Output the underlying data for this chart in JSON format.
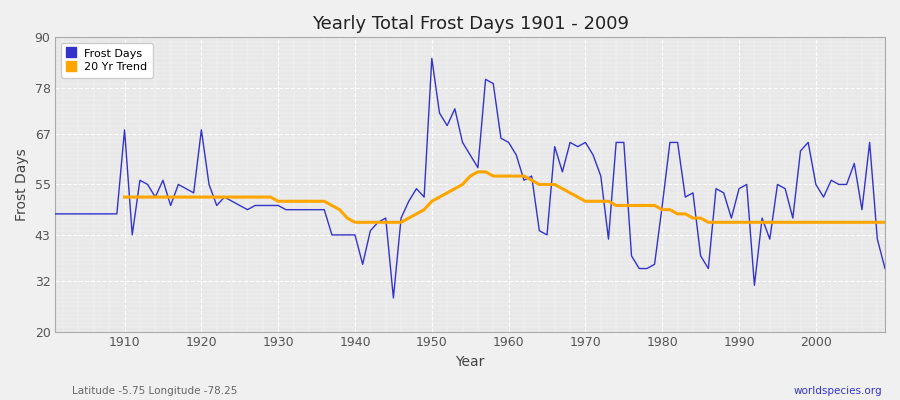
{
  "title": "Yearly Total Frost Days 1901 - 2009",
  "xlabel": "Year",
  "ylabel": "Frost Days",
  "footnote_left": "Latitude -5.75 Longitude -78.25",
  "footnote_right": "worldspecies.org",
  "legend_labels": [
    "Frost Days",
    "20 Yr Trend"
  ],
  "line_color": "#3333cc",
  "trend_color": "#FFA500",
  "plot_bg_color": "#e8e8e8",
  "fig_bg_color": "#f0f0f0",
  "ylim": [
    20,
    90
  ],
  "yticks": [
    20,
    32,
    43,
    55,
    67,
    78,
    90
  ],
  "xlim": [
    1901,
    2009
  ],
  "xticks": [
    1910,
    1920,
    1930,
    1940,
    1950,
    1960,
    1970,
    1980,
    1990,
    2000
  ],
  "years": [
    1901,
    1902,
    1903,
    1904,
    1905,
    1906,
    1907,
    1908,
    1909,
    1910,
    1911,
    1912,
    1913,
    1914,
    1915,
    1916,
    1917,
    1918,
    1919,
    1920,
    1921,
    1922,
    1923,
    1924,
    1925,
    1926,
    1927,
    1928,
    1929,
    1930,
    1931,
    1932,
    1933,
    1934,
    1935,
    1936,
    1937,
    1938,
    1939,
    1940,
    1941,
    1942,
    1943,
    1944,
    1945,
    1946,
    1947,
    1948,
    1949,
    1950,
    1951,
    1952,
    1953,
    1954,
    1955,
    1956,
    1957,
    1958,
    1959,
    1960,
    1961,
    1962,
    1963,
    1964,
    1965,
    1966,
    1967,
    1968,
    1969,
    1970,
    1971,
    1972,
    1973,
    1974,
    1975,
    1976,
    1977,
    1978,
    1979,
    1980,
    1981,
    1982,
    1983,
    1984,
    1985,
    1986,
    1987,
    1988,
    1989,
    1990,
    1991,
    1992,
    1993,
    1994,
    1995,
    1996,
    1997,
    1998,
    1999,
    2000,
    2001,
    2002,
    2003,
    2004,
    2005,
    2006,
    2007,
    2008,
    2009
  ],
  "frost_days": [
    48,
    48,
    48,
    48,
    48,
    48,
    48,
    48,
    48,
    68,
    43,
    56,
    55,
    52,
    56,
    50,
    55,
    54,
    53,
    68,
    55,
    50,
    52,
    51,
    50,
    49,
    50,
    50,
    50,
    50,
    49,
    49,
    49,
    49,
    49,
    49,
    43,
    43,
    43,
    43,
    36,
    44,
    46,
    47,
    28,
    47,
    51,
    54,
    52,
    85,
    72,
    69,
    73,
    65,
    62,
    59,
    80,
    79,
    66,
    65,
    62,
    56,
    57,
    44,
    43,
    64,
    58,
    65,
    64,
    65,
    62,
    57,
    42,
    65,
    65,
    38,
    35,
    35,
    36,
    50,
    65,
    65,
    52,
    53,
    38,
    35,
    54,
    53,
    47,
    54,
    55,
    31,
    47,
    42,
    55,
    54,
    47,
    63,
    65,
    55,
    52,
    56,
    55,
    55,
    60,
    49,
    65,
    42,
    35
  ],
  "trend_years": [
    1910,
    1911,
    1912,
    1913,
    1914,
    1915,
    1916,
    1917,
    1918,
    1919,
    1920,
    1921,
    1922,
    1923,
    1924,
    1925,
    1926,
    1927,
    1928,
    1929,
    1930,
    1931,
    1932,
    1933,
    1934,
    1935,
    1936,
    1937,
    1938,
    1939,
    1940,
    1941,
    1942,
    1943,
    1944,
    1945,
    1946,
    1947,
    1948,
    1949,
    1950,
    1951,
    1952,
    1953,
    1954,
    1955,
    1956,
    1957,
    1958,
    1959,
    1960,
    1961,
    1962,
    1963,
    1964,
    1965,
    1966,
    1967,
    1968,
    1969,
    1970,
    1971,
    1972,
    1973,
    1974,
    1975,
    1976,
    1977,
    1978,
    1979,
    1980,
    1981,
    1982,
    1983,
    1984,
    1985,
    1986,
    1987,
    1988,
    1989,
    1990,
    1991,
    1992,
    1993,
    1994,
    1995,
    1996,
    1997,
    1998,
    1999,
    2000,
    2001,
    2002,
    2003,
    2004,
    2005,
    2006,
    2007,
    2008,
    2009
  ],
  "trend_values": [
    52,
    52,
    52,
    52,
    52,
    52,
    52,
    52,
    52,
    52,
    52,
    52,
    52,
    52,
    52,
    52,
    52,
    52,
    52,
    52,
    51,
    51,
    51,
    51,
    51,
    51,
    51,
    50,
    49,
    47,
    46,
    46,
    46,
    46,
    46,
    46,
    46,
    47,
    48,
    49,
    51,
    52,
    53,
    54,
    55,
    57,
    58,
    58,
    57,
    57,
    57,
    57,
    57,
    56,
    55,
    55,
    55,
    54,
    53,
    52,
    51,
    51,
    51,
    51,
    50,
    50,
    50,
    50,
    50,
    50,
    49,
    49,
    48,
    48,
    47,
    47,
    46,
    46,
    46,
    46,
    46,
    46,
    46,
    46,
    46,
    46,
    46,
    46,
    46,
    46,
    46,
    46,
    46,
    46,
    46,
    46,
    46,
    46,
    46,
    46
  ]
}
